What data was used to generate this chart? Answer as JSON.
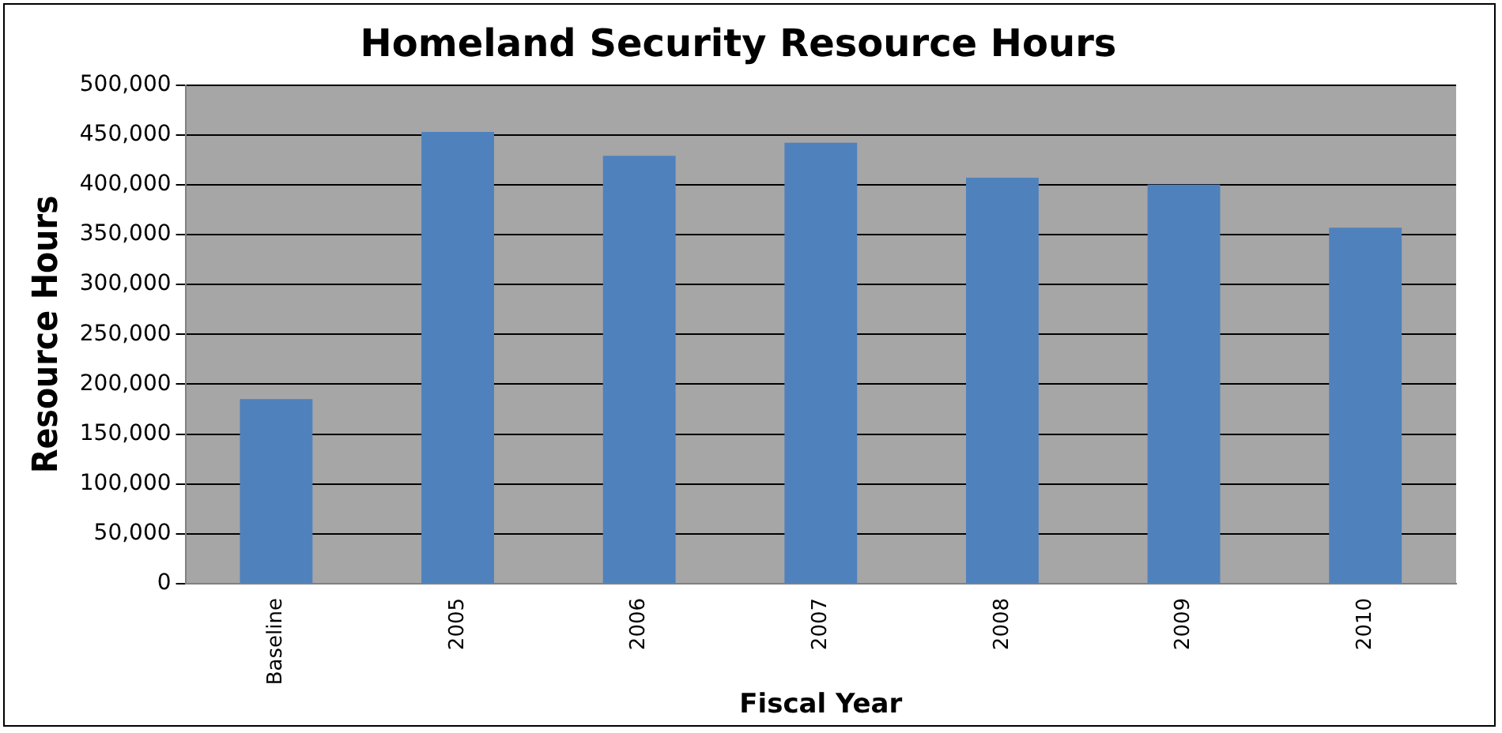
{
  "chart_data": {
    "type": "bar",
    "title": "Homeland Security Resource Hours",
    "xlabel": "Fiscal Year",
    "ylabel": "Resource Hours",
    "categories": [
      "Baseline",
      "2005",
      "2006",
      "2007",
      "2008",
      "2009",
      "2010"
    ],
    "values": [
      185000,
      453000,
      429000,
      442000,
      407000,
      400000,
      357000
    ],
    "color": "#4f81bd",
    "ylim": [
      0,
      500000
    ],
    "yticks": [
      0,
      {
        "value": 50000,
        "label": "50,000"
      },
      {
        "value": 100000,
        "label": "100,000"
      },
      {
        "value": 150000,
        "label": "150,000"
      },
      {
        "value": 200000,
        "label": "200,000"
      },
      {
        "value": 250000,
        "label": "250,000"
      },
      {
        "value": 300000,
        "label": "300,000"
      },
      {
        "value": 350000,
        "label": "350,000"
      },
      {
        "value": 400000,
        "label": "400,000"
      },
      {
        "value": 450000,
        "label": "450,000"
      },
      {
        "value": 500000,
        "label": "500,000"
      }
    ],
    "grid": "y",
    "legend": false
  }
}
